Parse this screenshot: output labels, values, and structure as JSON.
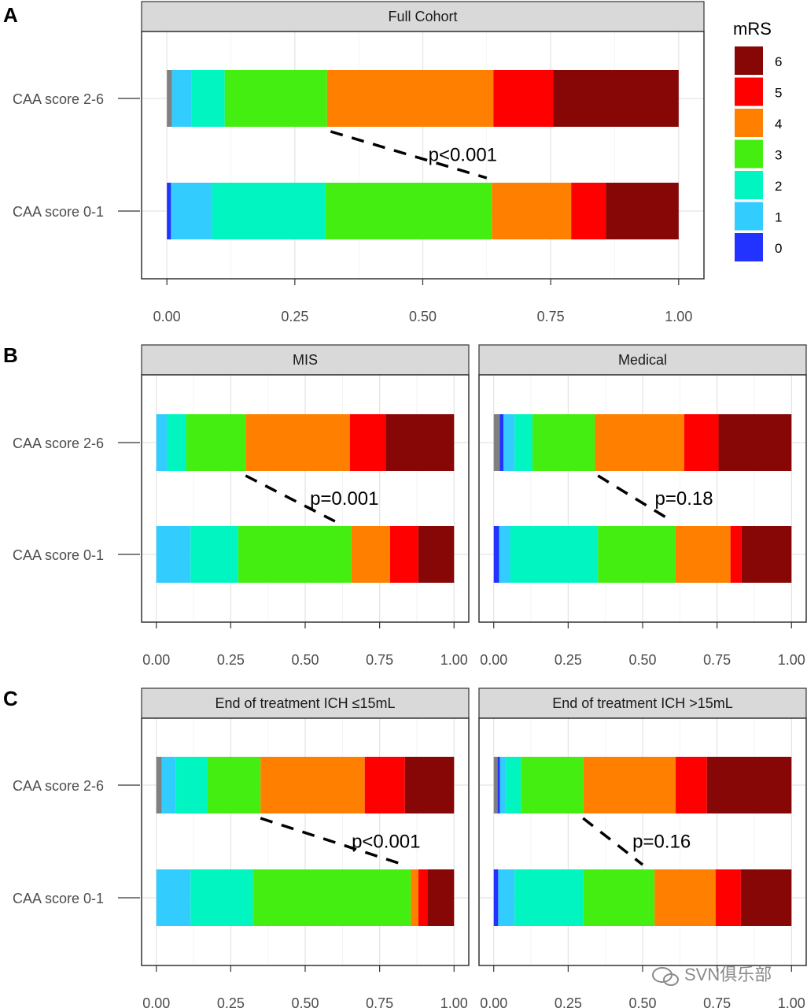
{
  "chart_data": {
    "type": "bar",
    "subtype": "stacked-horizontal-100",
    "categories": [
      "CAA score 2-6",
      "CAA score 0-1"
    ],
    "x_ticks": [
      "0.00",
      "0.25",
      "0.50",
      "0.75",
      "1.00"
    ],
    "xlim": [
      0,
      1
    ],
    "grid": true,
    "legend": {
      "title": "mRS",
      "position": "right",
      "entries": [
        {
          "label": "6",
          "color": "#870606"
        },
        {
          "label": "5",
          "color": "#ff0000"
        },
        {
          "label": "4",
          "color": "#ff8000"
        },
        {
          "label": "3",
          "color": "#44ee11"
        },
        {
          "label": "2",
          "color": "#00f5c0"
        },
        {
          "label": "1",
          "color": "#33ccff"
        },
        {
          "label": "0",
          "color": "#2233ff"
        }
      ]
    },
    "missing_color": "#808080",
    "segment_order": [
      "NA",
      "0",
      "1",
      "2",
      "3",
      "4",
      "5",
      "6"
    ],
    "panels": [
      {
        "letter": "A",
        "title": "Full Cohort",
        "p_value": "p<0.001",
        "connector": [
          0.32,
          0.625
        ],
        "bars": [
          {
            "category": "CAA score 2-6",
            "segments": [
              0.01,
              0.0,
              0.038,
              0.065,
              0.2,
              0.325,
              0.117,
              0.245
            ]
          },
          {
            "category": "CAA score 0-1",
            "segments": [
              0.0,
              0.008,
              0.08,
              0.222,
              0.325,
              0.155,
              0.068,
              0.142
            ]
          }
        ]
      },
      {
        "letter": "B",
        "title": "MIS",
        "p_value": "p=0.001",
        "connector": [
          0.3,
          0.6
        ],
        "bars": [
          {
            "category": "CAA score 2-6",
            "segments": [
              0.0,
              0.0,
              0.035,
              0.065,
              0.2,
              0.35,
              0.12,
              0.23
            ]
          },
          {
            "category": "CAA score 0-1",
            "segments": [
              0.0,
              0.0,
              0.115,
              0.16,
              0.38,
              0.13,
              0.095,
              0.12
            ]
          }
        ]
      },
      {
        "letter": "",
        "title": "Medical",
        "p_value": "p=0.18",
        "connector": [
          0.35,
          0.6
        ],
        "bars": [
          {
            "category": "CAA score 2-6",
            "segments": [
              0.02,
              0.013,
              0.037,
              0.06,
              0.21,
              0.3,
              0.115,
              0.245
            ]
          },
          {
            "category": "CAA score 0-1",
            "segments": [
              0.0,
              0.018,
              0.037,
              0.295,
              0.26,
              0.185,
              0.037,
              0.168
            ]
          }
        ]
      },
      {
        "letter": "C",
        "title": "End of treatment ICH ≤15mL",
        "p_value": "p<0.001",
        "connector": [
          0.35,
          0.83
        ],
        "bars": [
          {
            "category": "CAA score 2-6",
            "segments": [
              0.018,
              0.0,
              0.047,
              0.105,
              0.18,
              0.35,
              0.135,
              0.165
            ]
          },
          {
            "category": "CAA score 0-1",
            "segments": [
              0.0,
              0.0,
              0.115,
              0.21,
              0.53,
              0.025,
              0.03,
              0.09
            ]
          }
        ]
      },
      {
        "letter": "",
        "title": "End of treatment ICH >15mL",
        "p_value": "p=0.16",
        "connector": [
          0.3,
          0.5
        ],
        "bars": [
          {
            "category": "CAA score 2-6",
            "segments": [
              0.013,
              0.008,
              0.02,
              0.05,
              0.21,
              0.31,
              0.105,
              0.284
            ]
          },
          {
            "category": "CAA score 0-1",
            "segments": [
              0.0,
              0.015,
              0.055,
              0.23,
              0.24,
              0.205,
              0.085,
              0.17
            ]
          }
        ]
      }
    ]
  },
  "watermark": "SVN俱乐部"
}
